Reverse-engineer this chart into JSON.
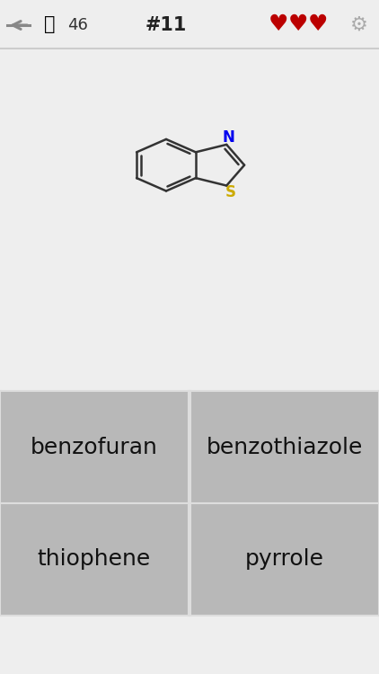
{
  "bg_color": "#eeeeee",
  "header_bg": "#ffffff",
  "hint_count": "46",
  "question_num": "#11",
  "heart_color": "#bb0000",
  "arrow_color": "#888888",
  "gear_color": "#aaaaaa",
  "bulb_color": "#e8d020",
  "answer_bg": "#b8b8b8",
  "answer_border": "#dddddd",
  "answers": [
    "benzofuran",
    "benzothiazole",
    "thiophene",
    "pyrrole"
  ],
  "answer_fontsize": 18,
  "N_color": "#0000ee",
  "S_color": "#ccaa00",
  "bond_color": "#333333",
  "bond_lw": 1.8
}
